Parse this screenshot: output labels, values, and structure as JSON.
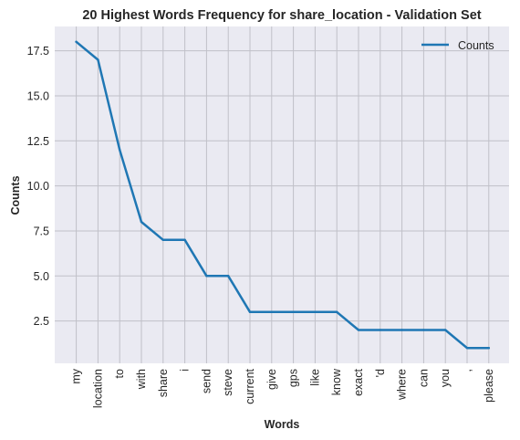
{
  "chart_data": {
    "type": "line",
    "title": "20 Highest Words Frequency for share_location - Validation Set",
    "xlabel": "Words",
    "ylabel": "Counts",
    "categories": [
      "my",
      "location",
      "to",
      "with",
      "share",
      "i",
      "send",
      "steve",
      "current",
      "give",
      "gps",
      "like",
      "know",
      "exact",
      "'d",
      "where",
      "can",
      "you",
      ",",
      "please"
    ],
    "series": [
      {
        "name": "Counts",
        "values": [
          18,
          17,
          12,
          8,
          7,
          7,
          5,
          5,
          3,
          3,
          3,
          3,
          3,
          2,
          2,
          2,
          2,
          2,
          1,
          1
        ]
      }
    ],
    "ylim": [
      0.15,
      18.85
    ],
    "yticks": [
      2.5,
      5.0,
      7.5,
      10.0,
      12.5,
      15.0,
      17.5
    ],
    "ytick_labels": [
      "2.5",
      "5.0",
      "7.5",
      "10.0",
      "12.5",
      "15.0",
      "17.5"
    ],
    "grid": true,
    "legend_position": "top-right",
    "colors": {
      "line": "#1f77b4",
      "plot_background": "#eaeaf2",
      "grid": "#c0c0c8"
    }
  }
}
